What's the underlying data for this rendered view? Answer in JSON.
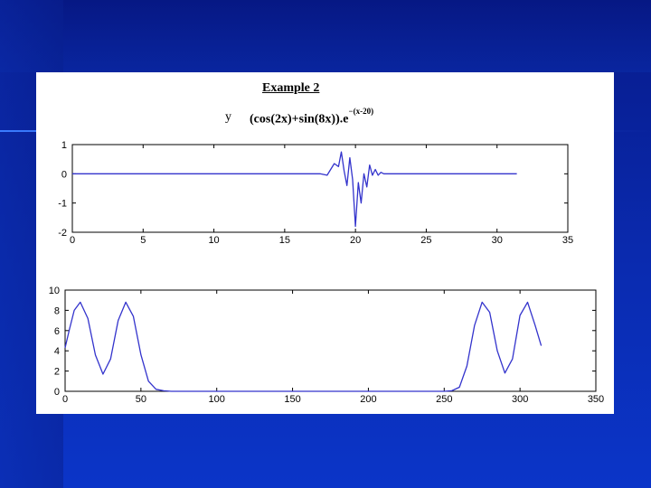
{
  "slide": {
    "title": "Example 2",
    "formula_lhs": "y",
    "formula_rhs": "(cos(2x)+sin(8x)).e",
    "formula_exp": "−(x-20)"
  },
  "colors": {
    "line": "#3333cc",
    "axes": "#000000",
    "background": "#ffffff"
  },
  "chart_data": [
    {
      "type": "line",
      "title": "",
      "xlabel": "",
      "ylabel": "",
      "xlim": [
        0,
        35
      ],
      "ylim": [
        -2,
        1
      ],
      "xticks": [
        0,
        5,
        10,
        15,
        20,
        25,
        30,
        35
      ],
      "yticks": [
        -2,
        -1,
        0,
        1
      ],
      "series": [
        {
          "x": [
            0,
            17.5,
            18,
            18.5,
            18.8,
            19.0,
            19.2,
            19.4,
            19.6,
            19.8,
            20.0,
            20.2,
            20.4,
            20.6,
            20.8,
            21.0,
            21.2,
            21.4,
            21.6,
            21.8,
            22.0,
            22.5,
            31.4
          ],
          "y": [
            0,
            0,
            -0.05,
            0.35,
            0.25,
            0.75,
            0.1,
            -0.4,
            0.55,
            -0.2,
            -1.8,
            -0.3,
            -1.0,
            0.0,
            -0.45,
            0.3,
            -0.05,
            0.15,
            -0.05,
            0.05,
            0.0,
            0.0,
            0.0
          ]
        }
      ]
    },
    {
      "type": "line",
      "title": "",
      "xlabel": "",
      "ylabel": "",
      "xlim": [
        0,
        350
      ],
      "ylim": [
        0,
        10
      ],
      "xticks": [
        0,
        50,
        100,
        150,
        200,
        250,
        300,
        350
      ],
      "yticks": [
        0,
        2,
        4,
        6,
        8,
        10
      ],
      "series": [
        {
          "x": [
            0,
            3,
            6,
            10,
            15,
            20,
            25,
            30,
            35,
            40,
            45,
            50,
            55,
            60,
            65,
            70,
            250,
            255,
            260,
            265,
            270,
            275,
            280,
            285,
            290,
            295,
            300,
            305,
            310,
            314
          ],
          "y": [
            4.3,
            6.2,
            8.0,
            8.8,
            7.2,
            3.6,
            1.7,
            3.2,
            7.0,
            8.8,
            7.4,
            3.6,
            1.0,
            0.2,
            0.05,
            0.0,
            0.0,
            0.05,
            0.4,
            2.5,
            6.5,
            8.8,
            7.8,
            4.0,
            1.8,
            3.2,
            7.5,
            8.8,
            6.5,
            4.5
          ]
        }
      ]
    }
  ]
}
